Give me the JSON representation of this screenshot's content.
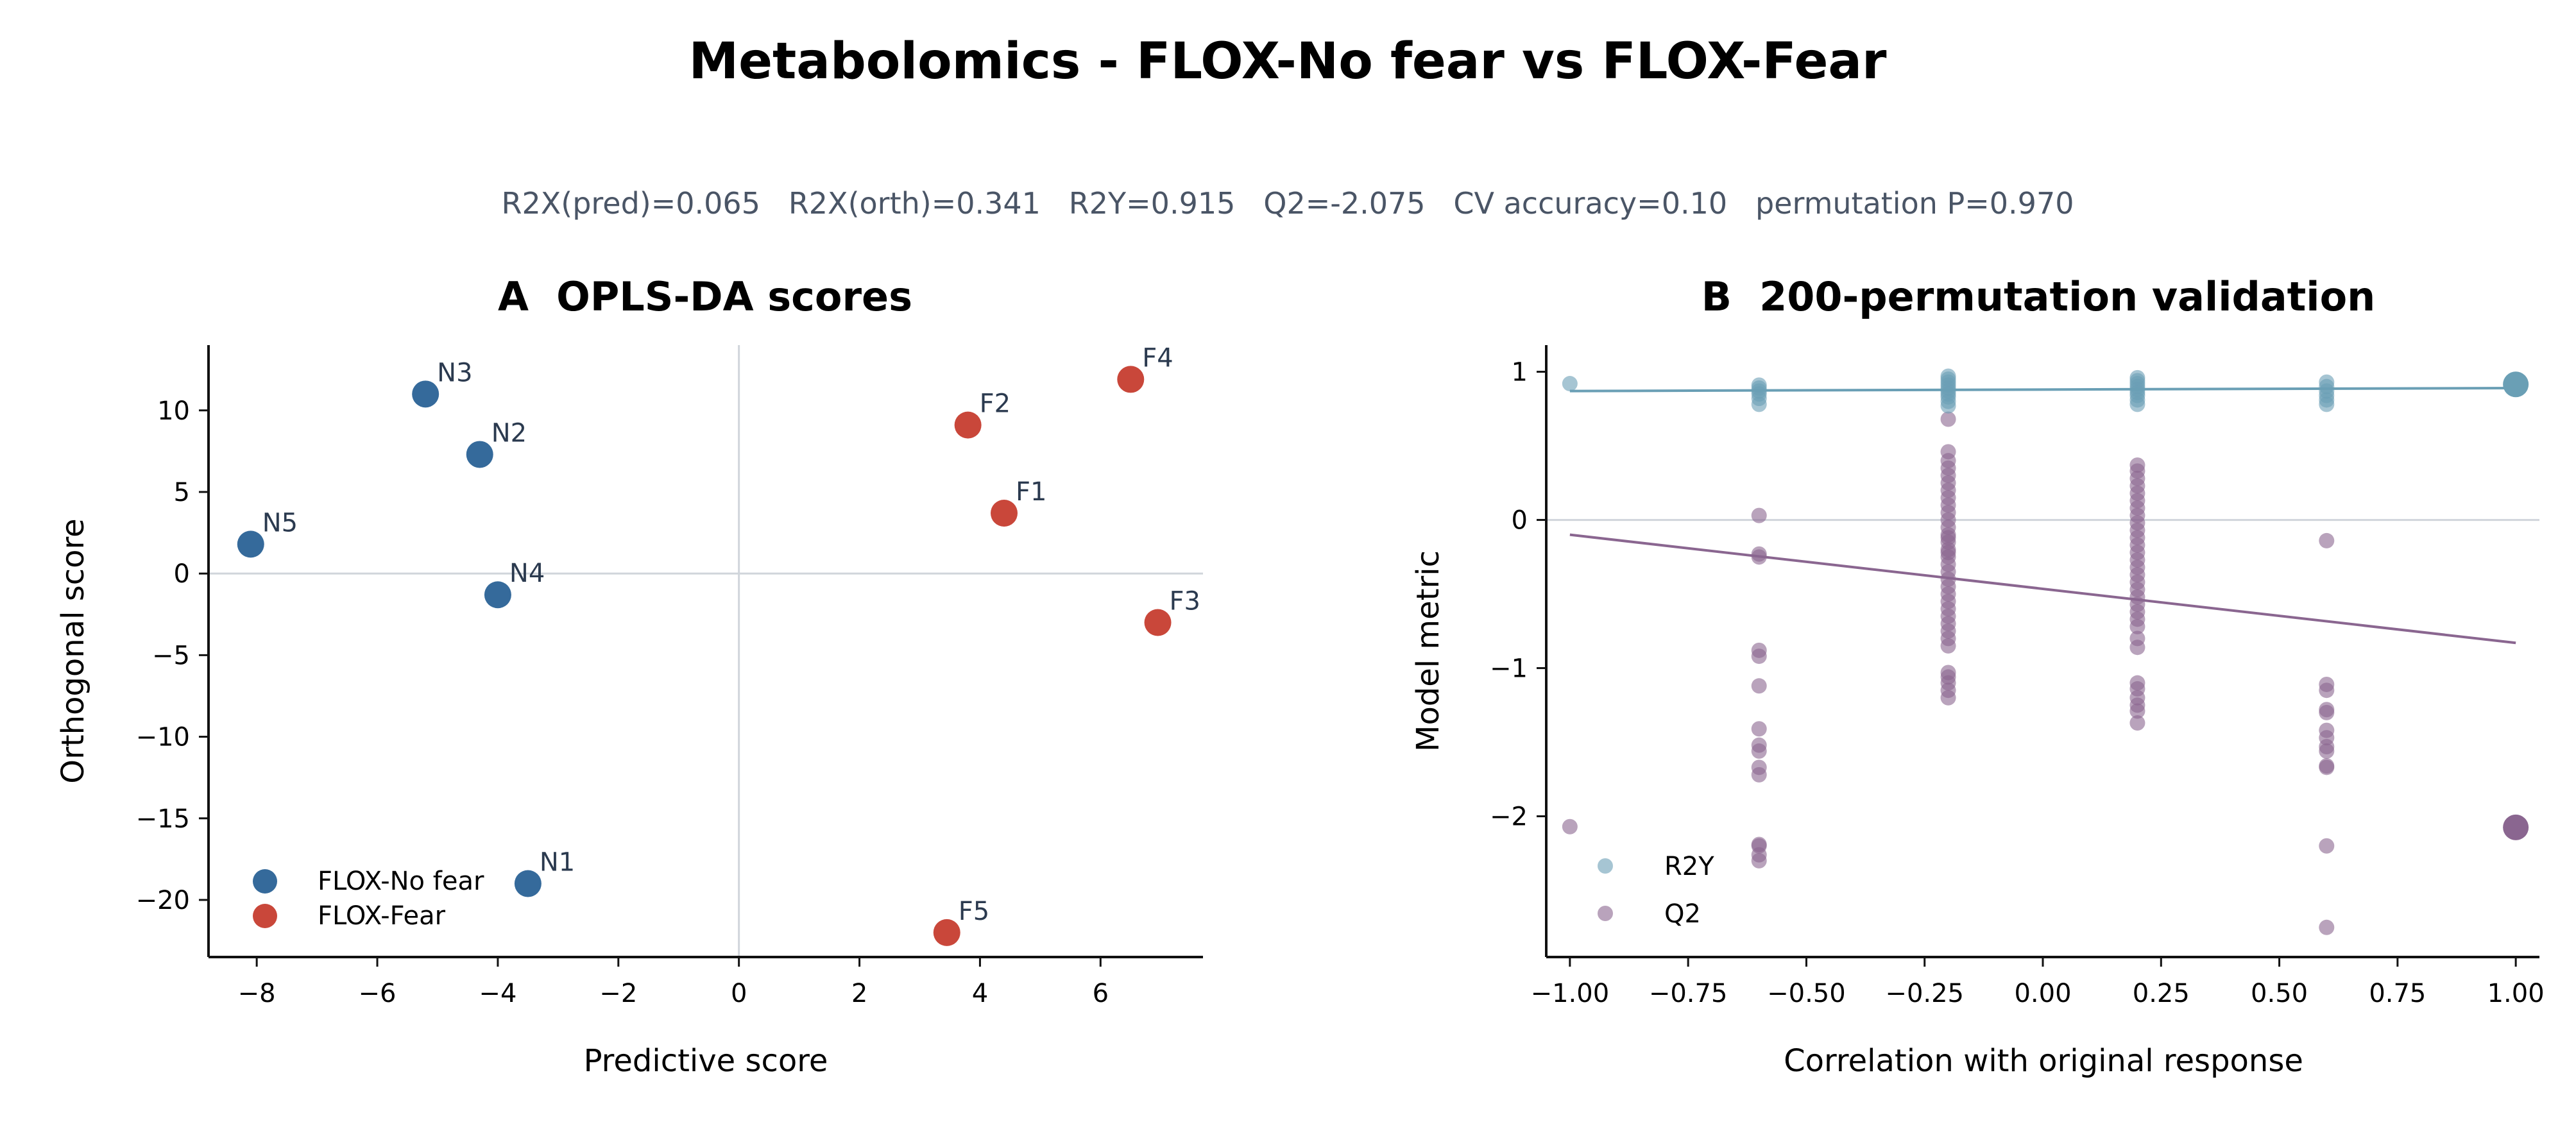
{
  "figure": {
    "title": "Metabolomics - FLOX-No fear vs FLOX-Fear",
    "subtitle": "R2X(pred)=0.065   R2X(orth)=0.341   R2Y=0.915   Q2=-2.075   CV accuracy=0.10   permutation P=0.970"
  },
  "colors": {
    "no_fear": "#356a9b",
    "fear": "#c9473a",
    "r2y": "#6a9fb5",
    "q2": "#8a6690",
    "zero_line": "#d0d5db",
    "axis": "#111111",
    "point_label": "#2b3a4f"
  },
  "chart_data": [
    {
      "type": "scatter",
      "title": "A  OPLS-DA scores",
      "xlabel": "Predictive score",
      "ylabel": "Orthogonal score",
      "xlim": [
        -8.8,
        7.7
      ],
      "ylim": [
        -23.5,
        14
      ],
      "xticks": [
        -8,
        -6,
        -4,
        -2,
        0,
        2,
        4,
        6
      ],
      "yticks": [
        10,
        5,
        0,
        -5,
        -10,
        -15,
        -20
      ],
      "zero_lines": true,
      "grid": false,
      "legend_position": "bottom-left",
      "series": [
        {
          "name": "FLOX-No fear",
          "color_key": "no_fear",
          "points": [
            {
              "label": "N1",
              "x": -3.5,
              "y": -19.0
            },
            {
              "label": "N2",
              "x": -4.3,
              "y": 7.3
            },
            {
              "label": "N3",
              "x": -5.2,
              "y": 11.0
            },
            {
              "label": "N4",
              "x": -4.0,
              "y": -1.3
            },
            {
              "label": "N5",
              "x": -8.1,
              "y": 1.8
            }
          ]
        },
        {
          "name": "FLOX-Fear",
          "color_key": "fear",
          "points": [
            {
              "label": "F1",
              "x": 4.4,
              "y": 3.7
            },
            {
              "label": "F2",
              "x": 3.8,
              "y": 9.1
            },
            {
              "label": "F3",
              "x": 6.95,
              "y": -3.0
            },
            {
              "label": "F4",
              "x": 6.5,
              "y": 11.9
            },
            {
              "label": "F5",
              "x": 3.45,
              "y": -22.0
            }
          ]
        }
      ]
    },
    {
      "type": "scatter",
      "title": "B  200-permutation validation",
      "xlabel": "Correlation with original response",
      "ylabel": "Model metric",
      "xlim": [
        -1.05,
        1.05
      ],
      "ylim": [
        -2.95,
        1.18
      ],
      "xticks": [
        -1.0,
        -0.75,
        -0.5,
        -0.25,
        0.0,
        0.25,
        0.5,
        0.75,
        1.0
      ],
      "yticks": [
        1,
        0,
        -1,
        -2
      ],
      "zero_line": true,
      "grid": false,
      "legend_position": "bottom-left",
      "series": [
        {
          "name": "R2Y",
          "color_key": "r2y",
          "x": [
            -1.0,
            -0.6,
            -0.6,
            -0.6,
            -0.6,
            -0.6,
            -0.6,
            -0.2,
            -0.2,
            -0.2,
            -0.2,
            -0.2,
            -0.2,
            -0.2,
            -0.2,
            -0.2,
            -0.2,
            0.2,
            0.2,
            0.2,
            0.2,
            0.2,
            0.2,
            0.2,
            0.2,
            0.2,
            0.6,
            0.6,
            0.6,
            0.6,
            0.6,
            0.6
          ],
          "y": [
            0.92,
            0.91,
            0.89,
            0.87,
            0.85,
            0.82,
            0.78,
            0.97,
            0.95,
            0.93,
            0.91,
            0.89,
            0.87,
            0.85,
            0.83,
            0.8,
            0.77,
            0.96,
            0.94,
            0.92,
            0.9,
            0.88,
            0.86,
            0.84,
            0.81,
            0.78,
            0.93,
            0.9,
            0.87,
            0.84,
            0.81,
            0.78
          ],
          "fit": {
            "x": [
              -1.0,
              1.0
            ],
            "y": [
              0.87,
              0.89
            ]
          },
          "observed": {
            "x": 1.0,
            "y": 0.915
          }
        },
        {
          "name": "Q2",
          "color_key": "q2",
          "x": [
            -1.0,
            -0.6,
            -0.6,
            -0.6,
            -0.6,
            -0.6,
            -0.6,
            -0.6,
            -0.6,
            -0.6,
            -0.6,
            -0.6,
            -0.6,
            -0.6,
            -0.6,
            -0.6,
            -0.2,
            -0.2,
            -0.2,
            -0.2,
            -0.2,
            -0.2,
            -0.2,
            -0.2,
            -0.2,
            -0.2,
            -0.2,
            -0.2,
            -0.2,
            -0.2,
            -0.2,
            -0.2,
            -0.2,
            -0.2,
            -0.2,
            -0.2,
            -0.2,
            -0.2,
            -0.2,
            -0.2,
            -0.2,
            -0.2,
            -0.2,
            -0.2,
            -0.2,
            -0.2,
            -0.2,
            -0.2,
            -0.2,
            -0.2,
            -0.2,
            0.2,
            0.2,
            0.2,
            0.2,
            0.2,
            0.2,
            0.2,
            0.2,
            0.2,
            0.2,
            0.2,
            0.2,
            0.2,
            0.2,
            0.2,
            0.2,
            0.2,
            0.2,
            0.2,
            0.2,
            0.2,
            0.2,
            0.2,
            0.2,
            0.2,
            0.2,
            0.2,
            0.2,
            0.2,
            0.2,
            0.2,
            0.6,
            0.6,
            0.6,
            0.6,
            0.6,
            0.6,
            0.6,
            0.6,
            0.6,
            0.6,
            0.6,
            0.6,
            0.6
          ],
          "y": [
            -2.07,
            0.03,
            -0.23,
            -0.25,
            -0.88,
            -0.92,
            -1.12,
            -1.41,
            -1.52,
            -1.56,
            -1.67,
            -1.72,
            -2.19,
            -2.3,
            -2.2,
            -2.26,
            0.68,
            0.46,
            0.4,
            0.35,
            0.3,
            0.25,
            0.2,
            0.15,
            0.1,
            0.05,
            0.0,
            -0.05,
            -0.1,
            -0.15,
            -0.2,
            -0.25,
            -0.3,
            -0.35,
            -0.4,
            -0.45,
            -0.5,
            -0.55,
            -0.6,
            -0.65,
            -0.7,
            -0.75,
            -0.8,
            -0.85,
            -1.03,
            -1.06,
            -1.1,
            -1.15,
            -1.2,
            -0.12,
            -0.22,
            0.37,
            0.33,
            0.28,
            0.23,
            0.18,
            0.13,
            0.08,
            0.03,
            -0.02,
            -0.07,
            -0.12,
            -0.17,
            -0.22,
            -0.27,
            -0.32,
            -0.37,
            -0.42,
            -0.47,
            -0.52,
            -0.57,
            -0.62,
            -0.67,
            -0.72,
            -0.8,
            -0.86,
            -1.1,
            -1.14,
            -1.2,
            -1.29,
            -1.37,
            -1.25,
            -0.14,
            -1.11,
            -1.15,
            -1.28,
            -1.3,
            -1.42,
            -1.47,
            -1.53,
            -1.56,
            -1.66,
            -1.67,
            -2.2,
            -2.75
          ],
          "fit": {
            "x": [
              -1.0,
              1.0
            ],
            "y": [
              -0.1,
              -0.83
            ]
          },
          "observed": {
            "x": 1.0,
            "y": -2.075
          }
        }
      ]
    }
  ]
}
